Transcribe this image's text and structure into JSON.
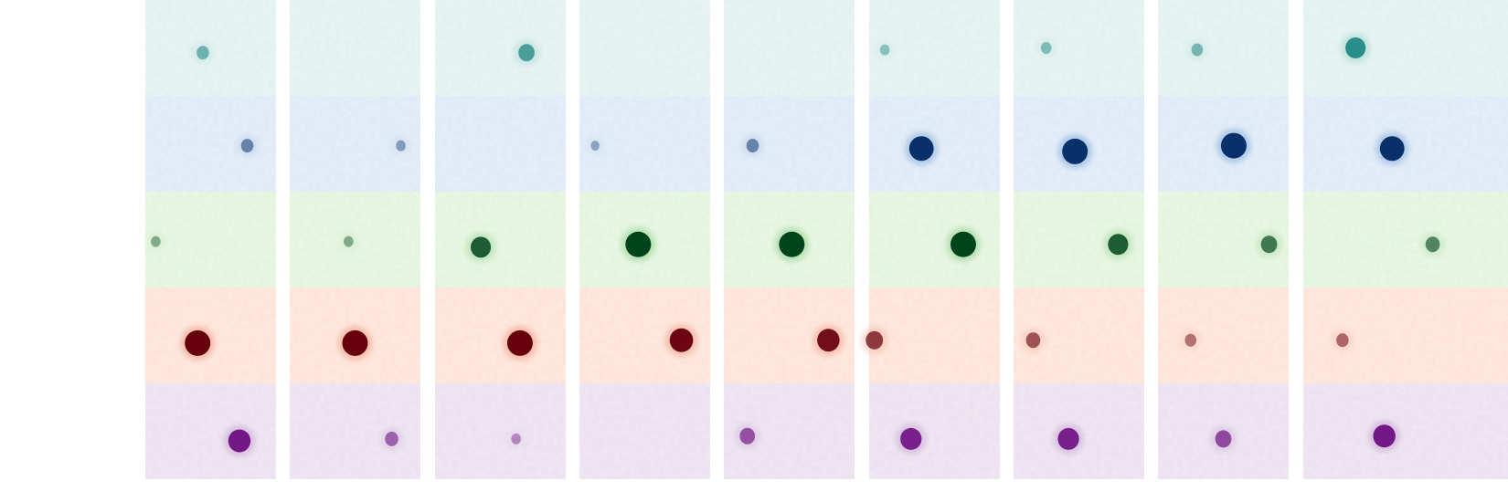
{
  "channels": [
    {
      "name": "teal",
      "bg": "#e1f1ef",
      "spot": "#0e7e7a",
      "halo": "#9ccfca",
      "spots": [
        [
          0.44,
          0.55,
          0.35
        ],
        [
          0,
          0,
          0
        ],
        [
          0.7,
          0.55,
          0.55
        ],
        [
          0,
          0,
          0
        ],
        [
          0,
          0,
          0
        ],
        [
          0.12,
          0.52,
          0.2
        ],
        [
          0.25,
          0.5,
          0.25
        ],
        [
          0.3,
          0.52,
          0.3
        ],
        [
          0.4,
          0.5,
          0.75
        ]
      ]
    },
    {
      "name": "blue",
      "bg": "#dde9f6",
      "spot": "#08306b",
      "halo": "#8fb4de",
      "spots": [
        [
          0.78,
          0.52,
          0.35
        ],
        [
          0.85,
          0.52,
          0.2
        ],
        [
          0,
          0,
          0
        ],
        [
          0.12,
          0.52,
          0.15
        ],
        [
          0.22,
          0.52,
          0.35
        ],
        [
          0.4,
          0.55,
          0.95
        ],
        [
          0.47,
          0.58,
          1.0
        ],
        [
          0.58,
          0.52,
          1.0
        ],
        [
          0.68,
          0.55,
          0.95
        ]
      ]
    },
    {
      "name": "green",
      "bg": "#e2f4dc",
      "spot": "#00441b",
      "halo": "#9dd49a",
      "spots": [
        [
          0.08,
          0.52,
          0.2
        ],
        [
          0.45,
          0.52,
          0.2
        ],
        [
          0.35,
          0.58,
          0.75
        ],
        [
          0.45,
          0.55,
          1.0
        ],
        [
          0.52,
          0.55,
          1.0
        ],
        [
          0.72,
          0.55,
          1.0
        ],
        [
          0.8,
          0.55,
          0.75
        ],
        [
          0.85,
          0.55,
          0.55
        ],
        [
          0.99,
          0.55,
          0.45
        ]
      ]
    },
    {
      "name": "red",
      "bg": "#fde2d6",
      "spot": "#67000d",
      "halo": "#f2a58f",
      "spots": [
        [
          0.4,
          0.58,
          1.0
        ],
        [
          0.5,
          0.58,
          1.0
        ],
        [
          0.65,
          0.58,
          1.0
        ],
        [
          0.78,
          0.55,
          0.9
        ],
        [
          0.8,
          0.55,
          0.85
        ],
        [
          0.04,
          0.55,
          0.6
        ],
        [
          0.15,
          0.55,
          0.45
        ],
        [
          0.25,
          0.55,
          0.3
        ],
        [
          0.3,
          0.55,
          0.35
        ]
      ]
    },
    {
      "name": "purple",
      "bg": "#ebe0ef",
      "spot": "#6c0b80",
      "halo": "#c3a2cf",
      "spots": [
        [
          0.72,
          0.6,
          0.85
        ],
        [
          0.78,
          0.58,
          0.4
        ],
        [
          0.62,
          0.58,
          0.2
        ],
        [
          0,
          0,
          0
        ],
        [
          0.18,
          0.55,
          0.5
        ],
        [
          0.32,
          0.58,
          0.8
        ],
        [
          0.42,
          0.58,
          0.8
        ],
        [
          0.5,
          0.58,
          0.55
        ],
        [
          0.62,
          0.55,
          0.85
        ]
      ]
    }
  ]
}
